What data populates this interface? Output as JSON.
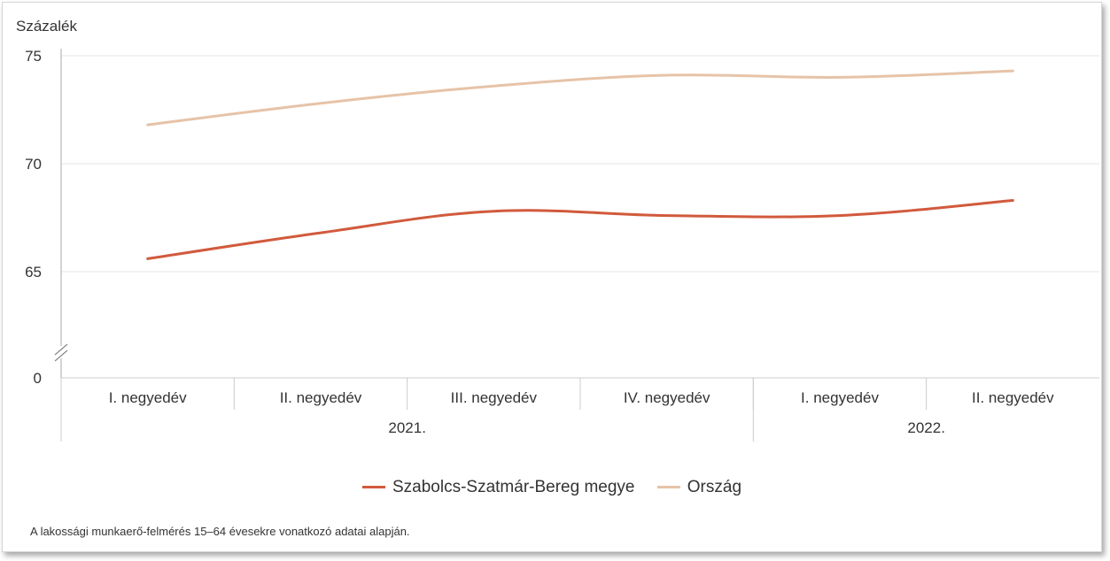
{
  "chart_data": {
    "type": "line",
    "ylabel": "Százalék",
    "y_ticks": [
      "0",
      "65",
      "70",
      "75"
    ],
    "y_axis_break": true,
    "ylim": [
      62,
      75
    ],
    "categories": [
      "I. negyedév",
      "II. negyedév",
      "III. negyedév",
      "IV. negyedév",
      "I. negyedév",
      "II. negyedév"
    ],
    "groups": [
      {
        "label": "2021.",
        "span": 4
      },
      {
        "label": "2022.",
        "span": 2
      }
    ],
    "series": [
      {
        "name": "Szabolcs-Szatmár-Bereg megye",
        "color": "#d15a3c",
        "values": [
          65.6,
          66.8,
          67.8,
          67.6,
          67.6,
          68.3
        ]
      },
      {
        "name": "Ország",
        "color": "#e6c3a8",
        "values": [
          71.8,
          72.8,
          73.6,
          74.1,
          74.0,
          74.3
        ]
      }
    ],
    "grid": true,
    "legend_position": "bottom"
  },
  "footnote": "A lakossági munkaerő-felmérés 15–64 évesekre vonatkozó adatai alapján."
}
